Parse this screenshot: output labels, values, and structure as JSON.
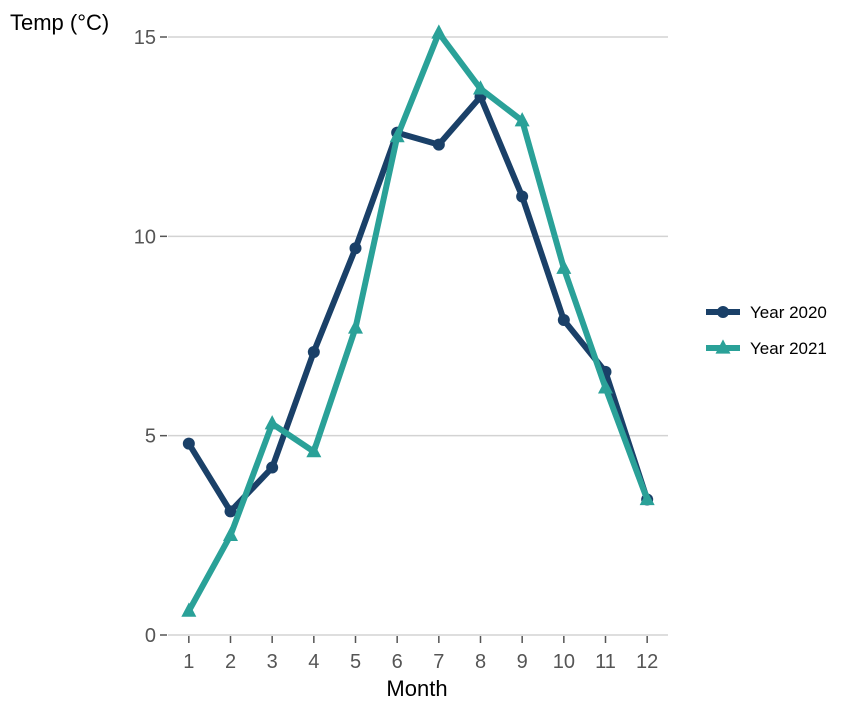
{
  "chart_data": {
    "type": "line",
    "ylabel": "Temp (°C)",
    "xlabel": "Month",
    "x": [
      1,
      2,
      3,
      4,
      5,
      6,
      7,
      8,
      9,
      10,
      11,
      12
    ],
    "xlim": [
      0.5,
      12.5
    ],
    "ylim": [
      0,
      15
    ],
    "yticks": [
      0,
      5,
      10,
      15
    ],
    "grid": "horizontal",
    "legend_position": "right",
    "series": [
      {
        "name": "Year 2020",
        "marker": "circle",
        "color": "#1a4068",
        "values": [
          4.8,
          3.1,
          4.2,
          7.1,
          9.7,
          12.6,
          12.3,
          13.5,
          11.0,
          7.9,
          6.6,
          3.4
        ]
      },
      {
        "name": "Year 2021",
        "marker": "triangle",
        "color": "#2aa198",
        "values": [
          0.6,
          2.5,
          5.3,
          4.6,
          7.7,
          12.5,
          15.1,
          13.7,
          12.9,
          9.2,
          6.2,
          3.4
        ]
      }
    ]
  }
}
